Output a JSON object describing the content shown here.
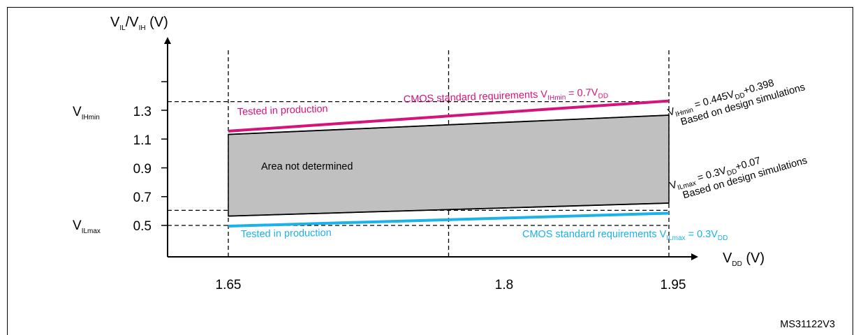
{
  "figure_id": "MS31122V3",
  "chart_data": {
    "type": "line",
    "y_axis_title": {
      "base": "V",
      "sub1": "IL",
      "slash": "/V",
      "sub2": "IH",
      "unit": " (V)"
    },
    "x_axis_title": {
      "base": "V",
      "sub": "DD",
      "unit": " (V)"
    },
    "x_ticks": [
      "1.65",
      "1.8",
      "1.95"
    ],
    "y_ticks": [
      "1.3",
      "1.1",
      "0.9",
      "0.7",
      "0.5"
    ],
    "y_side_labels": {
      "vihmin": {
        "base": "V",
        "sub": "IHmin"
      },
      "vilmax": {
        "base": "V",
        "sub": "ILmax"
      }
    },
    "series": [
      {
        "name": "CMOS standard requirements VIHmin = 0.7VDD",
        "color": "#d4147a",
        "x": [
          1.65,
          1.95
        ],
        "y": [
          1.155,
          1.365
        ]
      },
      {
        "name": "CMOS standard requirements VILmax = 0.3VDD",
        "color": "#1ab2e8",
        "x": [
          1.65,
          1.95
        ],
        "y": [
          0.495,
          0.585
        ]
      },
      {
        "name": "VIHmin = 0.445VDD+0.398",
        "color": "#000000",
        "x": [
          1.65,
          1.95
        ],
        "y": [
          1.132,
          1.266
        ]
      },
      {
        "name": "VILmax = 0.3VDD+0.07",
        "color": "#000000",
        "x": [
          1.65,
          1.95
        ],
        "y": [
          0.565,
          0.655
        ]
      }
    ],
    "ref_lines": {
      "x": [
        1.65,
        1.8,
        1.95
      ],
      "y": [
        0.5,
        0.605,
        1.36
      ]
    },
    "area_label": "Area not determined",
    "annotations": {
      "tested_top": "Tested in production",
      "tested_bottom": "Tested in production",
      "cmos_top": {
        "pre": "CMOS standard  requirements V",
        "sub": "IHmin",
        "mid": " = 0.7V",
        "sub2": "DD"
      },
      "cmos_bottom": {
        "pre": "CMOS standard  requirements V",
        "sub": "ILmax",
        "mid": " = 0.3V",
        "sub2": "DD"
      },
      "eq_top": {
        "pre": "V",
        "sub": "IHmin",
        "mid": " = 0.445V",
        "sub2": "DD",
        "post": "+0.398"
      },
      "eq_top_note": "Based on design simulations",
      "eq_bottom": {
        "pre": "V",
        "sub": "ILmax",
        "mid": " = 0.3V",
        "sub2": "DD",
        "post": "+0.07"
      },
      "eq_bottom_note": "Based on design simulations"
    }
  }
}
